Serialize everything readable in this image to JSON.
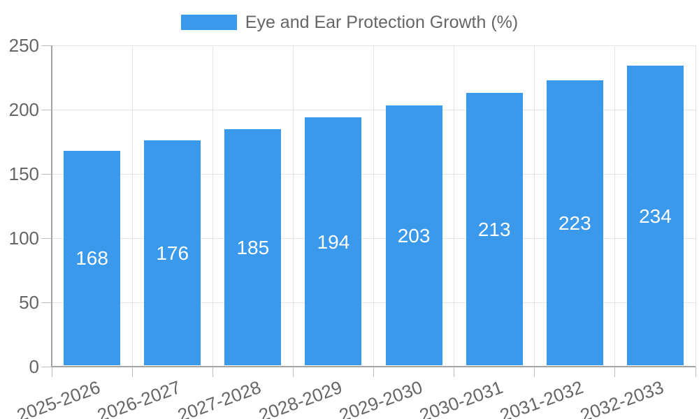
{
  "chart_data": {
    "type": "bar",
    "title": "Eye and Ear Protection Growth (%)",
    "categories": [
      "2025-2026",
      "2026-2027",
      "2027-2028",
      "2028-2029",
      "2029-2030",
      "2030-2031",
      "2031-2032",
      "2032-2033"
    ],
    "values": [
      168,
      176,
      185,
      194,
      203,
      213,
      223,
      234
    ],
    "series": [
      {
        "name": "Eye and Ear Protection Growth (%)",
        "values": [
          168,
          176,
          185,
          194,
          203,
          213,
          223,
          234
        ]
      }
    ],
    "xlabel": "",
    "ylabel": "",
    "ylim": [
      0,
      250
    ],
    "y_ticks": [
      0,
      50,
      100,
      150,
      200,
      250
    ],
    "grid": true,
    "legend_position": "top",
    "value_labels": "inside-center",
    "colors": {
      "bar": "#3B99EC",
      "value_label": "#ffffff",
      "tick_text": "#666666",
      "gridline": "#E5E5E5",
      "axis": "#A5A5A5",
      "background": "#ffffff"
    }
  }
}
